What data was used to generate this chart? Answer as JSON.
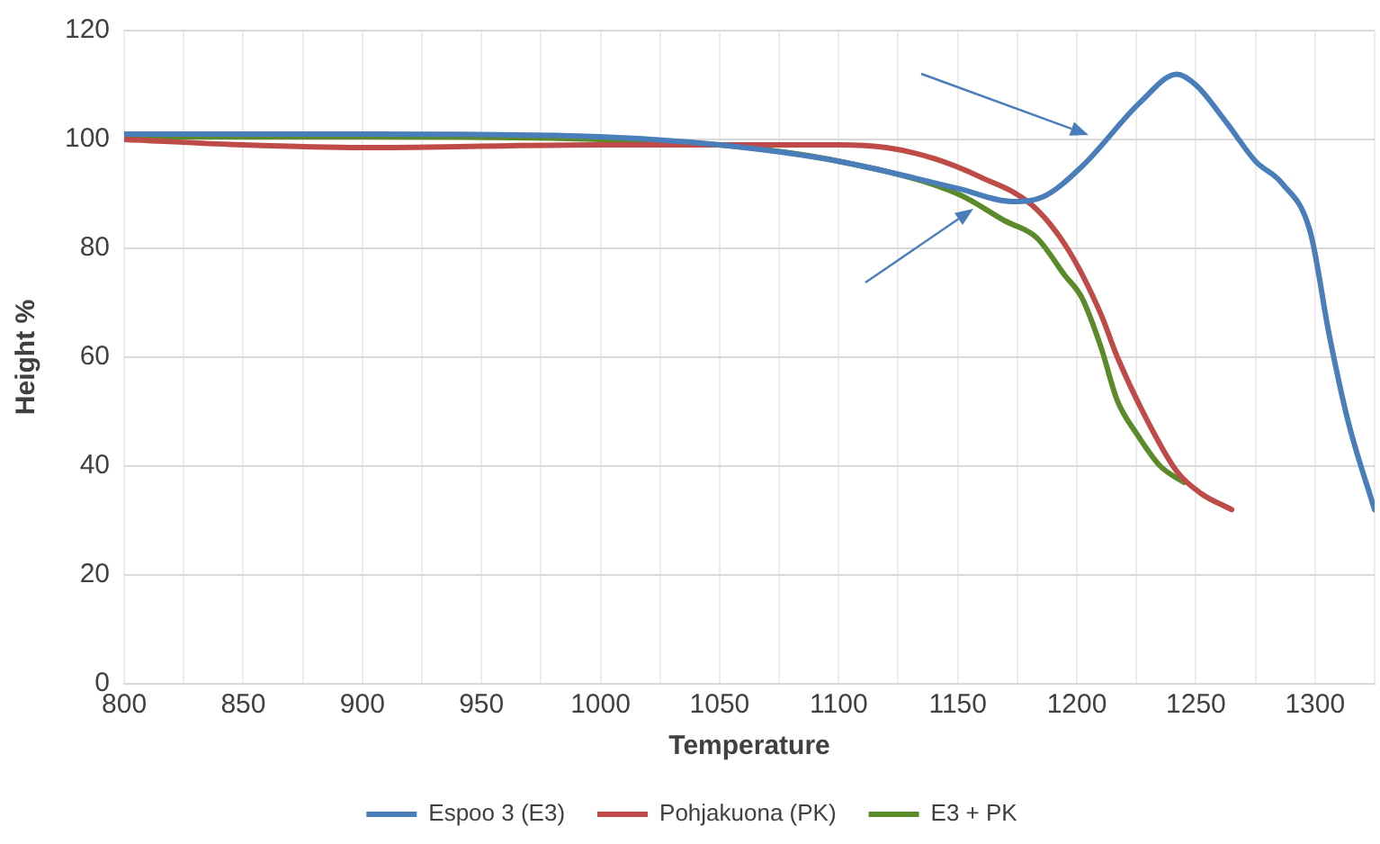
{
  "chart_data": {
    "type": "line",
    "xlabel": "Temperature",
    "ylabel": "Height %",
    "xlim": [
      800,
      1325
    ],
    "ylim": [
      0,
      120
    ],
    "xticks": [
      800,
      {
        "value": 825,
        "label": null
      },
      850,
      {
        "value": 875,
        "label": null
      },
      900,
      {
        "value": 925,
        "label": null
      },
      950,
      {
        "value": 975,
        "label": null
      },
      1000,
      {
        "value": 1025,
        "label": null
      },
      1050,
      {
        "value": 1075,
        "label": null
      },
      1100,
      {
        "value": 1125,
        "label": null
      },
      1150,
      {
        "value": 1175,
        "label": null
      },
      1200,
      {
        "value": 1225,
        "label": null
      },
      1250,
      {
        "value": 1275,
        "label": null
      },
      1300,
      {
        "value": 1325,
        "label": null
      }
    ],
    "yticks": [
      0,
      20,
      40,
      60,
      80,
      100,
      120
    ],
    "grid": true,
    "legend": "bottom",
    "marker": "none",
    "line_style": "solid",
    "series": [
      {
        "name": "Espoo 3 (E3)",
        "color": "#4a7ebb",
        "x": [
          800,
          900,
          1000,
          1050,
          1100,
          1150,
          1173,
          1186,
          1202,
          1227,
          1242,
          1250,
          1263,
          1275,
          1286,
          1298,
          1306,
          1314,
          1325
        ],
        "values": [
          101,
          101,
          100.5,
          99,
          96,
          91,
          88.6,
          89.5,
          95,
          107,
          112,
          110,
          103,
          96,
          92,
          83,
          64,
          48,
          32
        ]
      },
      {
        "name": "Pohjakuona (PK)",
        "color": "#be4b48",
        "x": [
          800,
          850,
          900,
          1000,
          1100,
          1120,
          1140,
          1160,
          1181,
          1196,
          1210,
          1217,
          1230,
          1242,
          1252,
          1265
        ],
        "values": [
          100,
          99,
          98.5,
          99,
          99,
          98.5,
          96.5,
          93,
          88,
          80,
          68,
          60,
          48,
          39,
          35,
          32
        ]
      },
      {
        "name": "E3 + PK",
        "color": "#5a8a2a",
        "x": [
          800,
          900,
          1000,
          1050,
          1100,
          1150,
          1170,
          1183,
          1195,
          1202,
          1210,
          1217,
          1225,
          1235,
          1245
        ],
        "values": [
          100.5,
          100.5,
          100,
          99,
          96,
          90,
          85,
          82,
          75,
          71,
          62,
          52,
          46,
          40,
          37
        ]
      }
    ]
  }
}
